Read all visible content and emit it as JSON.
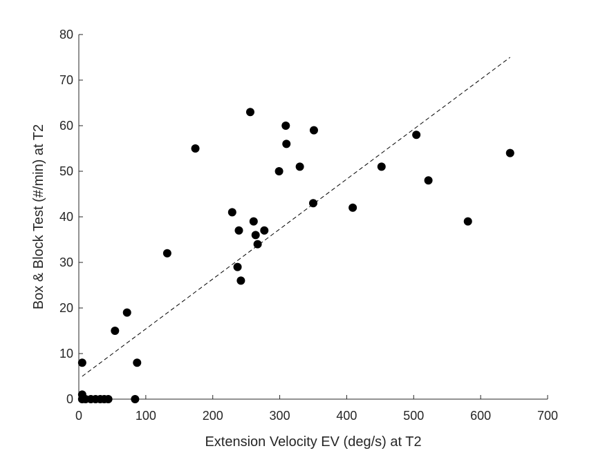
{
  "chart_data": {
    "type": "scatter",
    "title": "",
    "xlabel": "Extension Velocity EV (deg/s) at T2",
    "ylabel": "Box & Block Test (#/min) at T2",
    "xlim": [
      0,
      700
    ],
    "ylim": [
      0,
      80
    ],
    "xticks": [
      0,
      100,
      200,
      300,
      400,
      500,
      600,
      700
    ],
    "yticks": [
      0,
      10,
      20,
      30,
      40,
      50,
      60,
      70,
      80
    ],
    "grid": false,
    "legend": false,
    "marker_color": "#000000",
    "points": [
      {
        "x": 5,
        "y": 8
      },
      {
        "x": 5,
        "y": 1
      },
      {
        "x": 5,
        "y": 0
      },
      {
        "x": 10,
        "y": 0
      },
      {
        "x": 18,
        "y": 0
      },
      {
        "x": 25,
        "y": 0
      },
      {
        "x": 32,
        "y": 0
      },
      {
        "x": 38,
        "y": 0
      },
      {
        "x": 44,
        "y": 0
      },
      {
        "x": 54,
        "y": 15
      },
      {
        "x": 72,
        "y": 19
      },
      {
        "x": 84,
        "y": 0
      },
      {
        "x": 87,
        "y": 8
      },
      {
        "x": 132,
        "y": 32
      },
      {
        "x": 174,
        "y": 55
      },
      {
        "x": 229,
        "y": 41
      },
      {
        "x": 237,
        "y": 29
      },
      {
        "x": 239,
        "y": 37
      },
      {
        "x": 242,
        "y": 26
      },
      {
        "x": 256,
        "y": 63
      },
      {
        "x": 261,
        "y": 39
      },
      {
        "x": 264,
        "y": 36
      },
      {
        "x": 267,
        "y": 34
      },
      {
        "x": 277,
        "y": 37
      },
      {
        "x": 299,
        "y": 50
      },
      {
        "x": 309,
        "y": 60
      },
      {
        "x": 310,
        "y": 56
      },
      {
        "x": 330,
        "y": 51
      },
      {
        "x": 350,
        "y": 43
      },
      {
        "x": 351,
        "y": 59
      },
      {
        "x": 409,
        "y": 42
      },
      {
        "x": 452,
        "y": 51
      },
      {
        "x": 504,
        "y": 58
      },
      {
        "x": 522,
        "y": 48
      },
      {
        "x": 581,
        "y": 39
      },
      {
        "x": 644,
        "y": 54
      }
    ],
    "fit_line": {
      "style": "dashed",
      "x": [
        5,
        644
      ],
      "y": [
        5,
        75
      ]
    }
  }
}
